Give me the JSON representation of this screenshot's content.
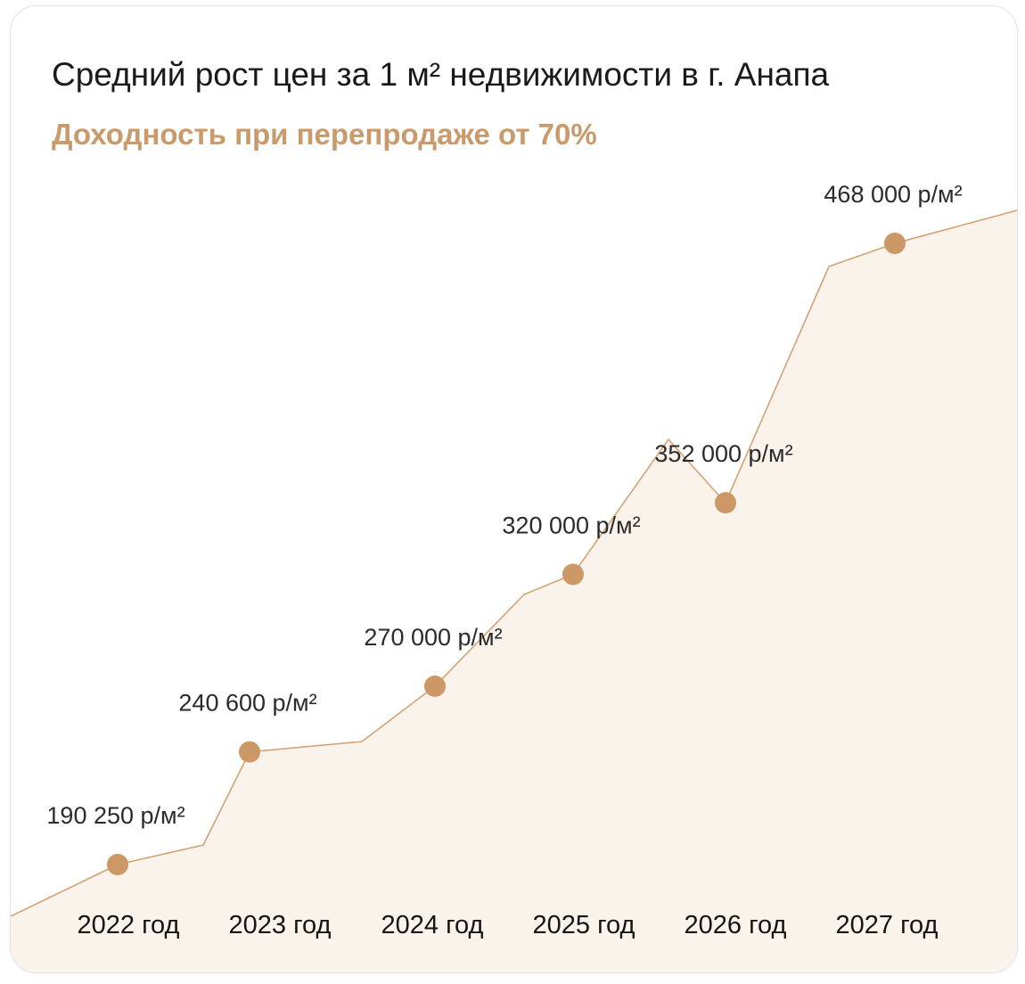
{
  "title": "Средний рост цен за 1 м² недвижимости в г. Анапа",
  "subtitle": "Доходность при перепродаже от 70%",
  "colors": {
    "accent": "#c99a6c",
    "area_fill": "#faf3ec",
    "line": "#d4a373",
    "marker": "#cb9866"
  },
  "chart_data": {
    "type": "area",
    "categories": [
      "2022 год",
      "2023 год",
      "2024 год",
      "2025 год",
      "2026 год",
      "2027 год"
    ],
    "series": [
      {
        "values": [
          190250,
          240600,
          270000,
          320000,
          352000,
          468000
        ],
        "data_labels": [
          "190 250 р/м²",
          "240 600 р/м²",
          "270 000 р/м²",
          "320 000 р/м²",
          "352 000 р/м²",
          "468 000 р/м²"
        ]
      }
    ],
    "xlabel": "",
    "ylabel": "",
    "grid": false,
    "legend": "none"
  }
}
